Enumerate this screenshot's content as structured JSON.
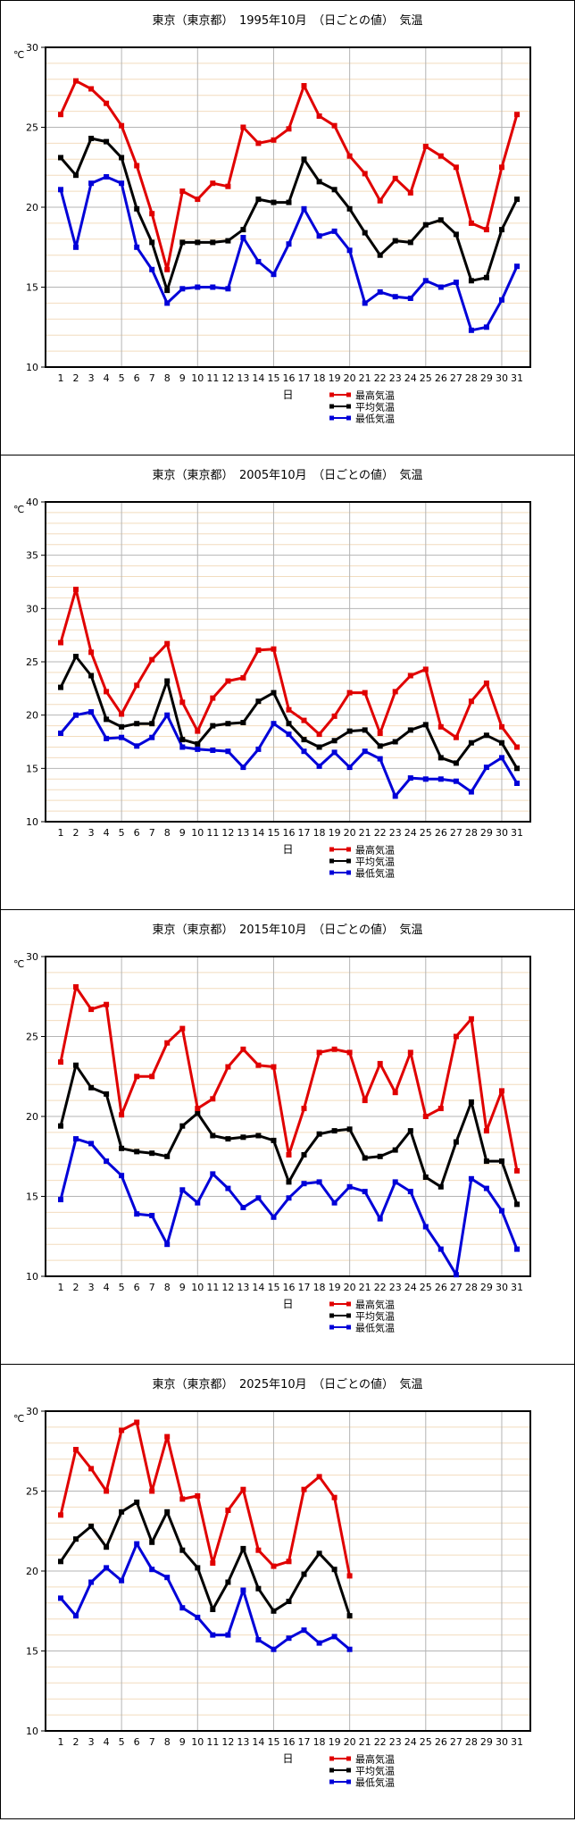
{
  "page_title": "気温グラフ（日ごとの値）",
  "axis": {
    "unit_label": "℃",
    "x_axis_label": "日"
  },
  "legend": {
    "position": "bottom-right",
    "entries": [
      {
        "label": "最高気温",
        "color": "#E00000"
      },
      {
        "label": "平均気温",
        "color": "#000000"
      },
      {
        "label": "最低気温",
        "color": "#0000D8"
      }
    ]
  },
  "colors": {
    "max_series": "#E00000",
    "avg_series": "#000000",
    "min_series": "#0000D8",
    "grid_major": "#B4B4B4",
    "grid_minor": "#F2DCBE",
    "plot_border": "#000000",
    "background": "#FFFFFF"
  },
  "chart_data": [
    {
      "type": "line",
      "title": "東京（東京都）　1995年10月　（日ごとの値）　気温",
      "xlabel": "日",
      "ylabel": "℃",
      "ylim": [
        10,
        30
      ],
      "y_tick_step": 5,
      "x_ticks": [
        1,
        2,
        3,
        4,
        5,
        6,
        7,
        8,
        9,
        10,
        11,
        12,
        13,
        14,
        15,
        16,
        17,
        18,
        19,
        20,
        21,
        22,
        23,
        24,
        25,
        26,
        27,
        28,
        29,
        30,
        31
      ],
      "grid": true,
      "series": [
        {
          "name": "最高気温",
          "color": "#E00000",
          "values": [
            25.8,
            27.9,
            27.4,
            26.5,
            25.1,
            22.6,
            19.6,
            16.1,
            21.0,
            20.5,
            21.5,
            21.3,
            25.0,
            24.0,
            24.2,
            24.9,
            27.6,
            25.7,
            25.1,
            23.2,
            22.1,
            20.4,
            21.8,
            20.9,
            23.8,
            23.2,
            22.5,
            19.0,
            18.6,
            22.5,
            25.8
          ]
        },
        {
          "name": "平均気温",
          "color": "#000000",
          "values": [
            23.1,
            22.0,
            24.3,
            24.1,
            23.1,
            19.9,
            17.8,
            14.8,
            17.8,
            17.8,
            17.8,
            17.9,
            18.6,
            20.5,
            20.3,
            20.3,
            23.0,
            21.6,
            21.1,
            19.9,
            18.4,
            17.0,
            17.9,
            17.8,
            18.9,
            19.2,
            18.3,
            15.4,
            15.6,
            18.6,
            20.5
          ]
        },
        {
          "name": "最低気温",
          "color": "#0000D8",
          "values": [
            21.1,
            17.5,
            21.5,
            21.9,
            21.5,
            17.5,
            16.1,
            14.0,
            14.9,
            15.0,
            15.0,
            14.9,
            18.1,
            16.6,
            15.8,
            17.7,
            19.9,
            18.2,
            18.5,
            17.3,
            14.0,
            14.7,
            14.4,
            14.3,
            15.4,
            15.0,
            15.3,
            12.3,
            12.5,
            14.2,
            16.3
          ]
        }
      ]
    },
    {
      "type": "line",
      "title": "東京（東京都）　2005年10月　（日ごとの値）　気温",
      "xlabel": "日",
      "ylabel": "℃",
      "ylim": [
        10,
        40
      ],
      "y_tick_step": 5,
      "x_ticks": [
        1,
        2,
        3,
        4,
        5,
        6,
        7,
        8,
        9,
        10,
        11,
        12,
        13,
        14,
        15,
        16,
        17,
        18,
        19,
        20,
        21,
        22,
        23,
        24,
        25,
        26,
        27,
        28,
        29,
        30,
        31
      ],
      "grid": true,
      "series": [
        {
          "name": "最高気温",
          "color": "#E00000",
          "values": [
            26.8,
            31.8,
            25.9,
            22.2,
            20.1,
            22.8,
            25.2,
            26.7,
            21.2,
            18.5,
            21.6,
            23.2,
            23.5,
            26.1,
            26.2,
            20.5,
            19.5,
            18.2,
            19.9,
            22.1,
            22.1,
            18.3,
            22.2,
            23.7,
            24.3,
            18.9,
            17.9,
            21.3,
            23.0,
            18.9,
            17.0
          ]
        },
        {
          "name": "平均気温",
          "color": "#000000",
          "values": [
            22.6,
            25.5,
            23.7,
            19.6,
            18.9,
            19.2,
            19.2,
            23.2,
            17.7,
            17.3,
            19.0,
            19.2,
            19.3,
            21.3,
            22.1,
            19.2,
            17.7,
            17.0,
            17.6,
            18.5,
            18.6,
            17.1,
            17.5,
            18.6,
            19.1,
            16.0,
            15.5,
            17.4,
            18.1,
            17.4,
            15.0
          ]
        },
        {
          "name": "最低気温",
          "color": "#0000D8",
          "values": [
            18.3,
            20.0,
            20.3,
            17.8,
            17.9,
            17.1,
            17.9,
            20.0,
            17.0,
            16.8,
            16.7,
            16.6,
            15.1,
            16.8,
            19.2,
            18.2,
            16.6,
            15.2,
            16.5,
            15.1,
            16.6,
            15.9,
            12.4,
            14.1,
            14.0,
            14.0,
            13.8,
            12.8,
            15.1,
            16.0,
            13.6
          ]
        }
      ]
    },
    {
      "type": "line",
      "title": "東京（東京都）　2015年10月　（日ごとの値）　気温",
      "xlabel": "日",
      "ylabel": "℃",
      "ylim": [
        10,
        30
      ],
      "y_tick_step": 5,
      "x_ticks": [
        1,
        2,
        3,
        4,
        5,
        6,
        7,
        8,
        9,
        10,
        11,
        12,
        13,
        14,
        15,
        16,
        17,
        18,
        19,
        20,
        21,
        22,
        23,
        24,
        25,
        26,
        27,
        28,
        29,
        30,
        31
      ],
      "grid": true,
      "series": [
        {
          "name": "最高気温",
          "color": "#E00000",
          "values": [
            23.4,
            28.1,
            26.7,
            27.0,
            20.1,
            22.5,
            22.5,
            24.6,
            25.5,
            20.5,
            21.1,
            23.1,
            24.2,
            23.2,
            23.1,
            17.6,
            20.5,
            24.0,
            24.2,
            24.0,
            21.0,
            23.3,
            21.5,
            24.0,
            20.0,
            20.5,
            25.0,
            26.1,
            19.1,
            21.6,
            16.6
          ]
        },
        {
          "name": "平均気温",
          "color": "#000000",
          "values": [
            19.4,
            23.2,
            21.8,
            21.4,
            18.0,
            17.8,
            17.7,
            17.5,
            19.4,
            20.2,
            18.8,
            18.6,
            18.7,
            18.8,
            18.5,
            15.9,
            17.6,
            18.9,
            19.1,
            19.2,
            17.4,
            17.5,
            17.9,
            19.1,
            16.2,
            15.6,
            18.4,
            20.9,
            17.2,
            17.2,
            14.5
          ]
        },
        {
          "name": "最低気温",
          "color": "#0000D8",
          "values": [
            14.8,
            18.6,
            18.3,
            17.2,
            16.3,
            13.9,
            13.8,
            12.0,
            15.4,
            14.6,
            16.4,
            15.5,
            14.3,
            14.9,
            13.7,
            14.9,
            15.8,
            15.9,
            14.6,
            15.6,
            15.3,
            13.6,
            15.9,
            15.3,
            13.1,
            11.7,
            10.1,
            16.1,
            15.5,
            14.1,
            11.7
          ]
        }
      ]
    },
    {
      "type": "line",
      "title": "東京（東京都）　2025年10月　（日ごとの値）　気温",
      "xlabel": "日",
      "ylabel": "℃",
      "ylim": [
        10,
        30
      ],
      "y_tick_step": 5,
      "x_ticks": [
        1,
        2,
        3,
        4,
        5,
        6,
        7,
        8,
        9,
        10,
        11,
        12,
        13,
        14,
        15,
        16,
        17,
        18,
        19,
        20,
        21,
        22,
        23,
        24,
        25,
        26,
        27,
        28,
        29,
        30,
        31
      ],
      "grid": true,
      "note": "data ends at day 20",
      "series": [
        {
          "name": "最高気温",
          "color": "#E00000",
          "values": [
            23.5,
            27.6,
            26.4,
            25.0,
            28.8,
            29.3,
            25.0,
            28.4,
            24.5,
            24.7,
            20.5,
            23.8,
            25.1,
            21.3,
            20.3,
            20.6,
            25.1,
            25.9,
            24.6,
            19.7
          ]
        },
        {
          "name": "平均気温",
          "color": "#000000",
          "values": [
            20.6,
            22.0,
            22.8,
            21.5,
            23.7,
            24.3,
            21.8,
            23.7,
            21.3,
            20.2,
            17.6,
            19.3,
            21.4,
            18.9,
            17.5,
            18.1,
            19.8,
            21.1,
            20.1,
            17.2
          ]
        },
        {
          "name": "最低気温",
          "color": "#0000D8",
          "values": [
            18.3,
            17.2,
            19.3,
            20.2,
            19.4,
            21.7,
            20.1,
            19.6,
            17.7,
            17.1,
            16.0,
            16.0,
            18.8,
            15.7,
            15.1,
            15.8,
            16.3,
            15.5,
            15.9,
            15.1
          ]
        }
      ]
    }
  ]
}
